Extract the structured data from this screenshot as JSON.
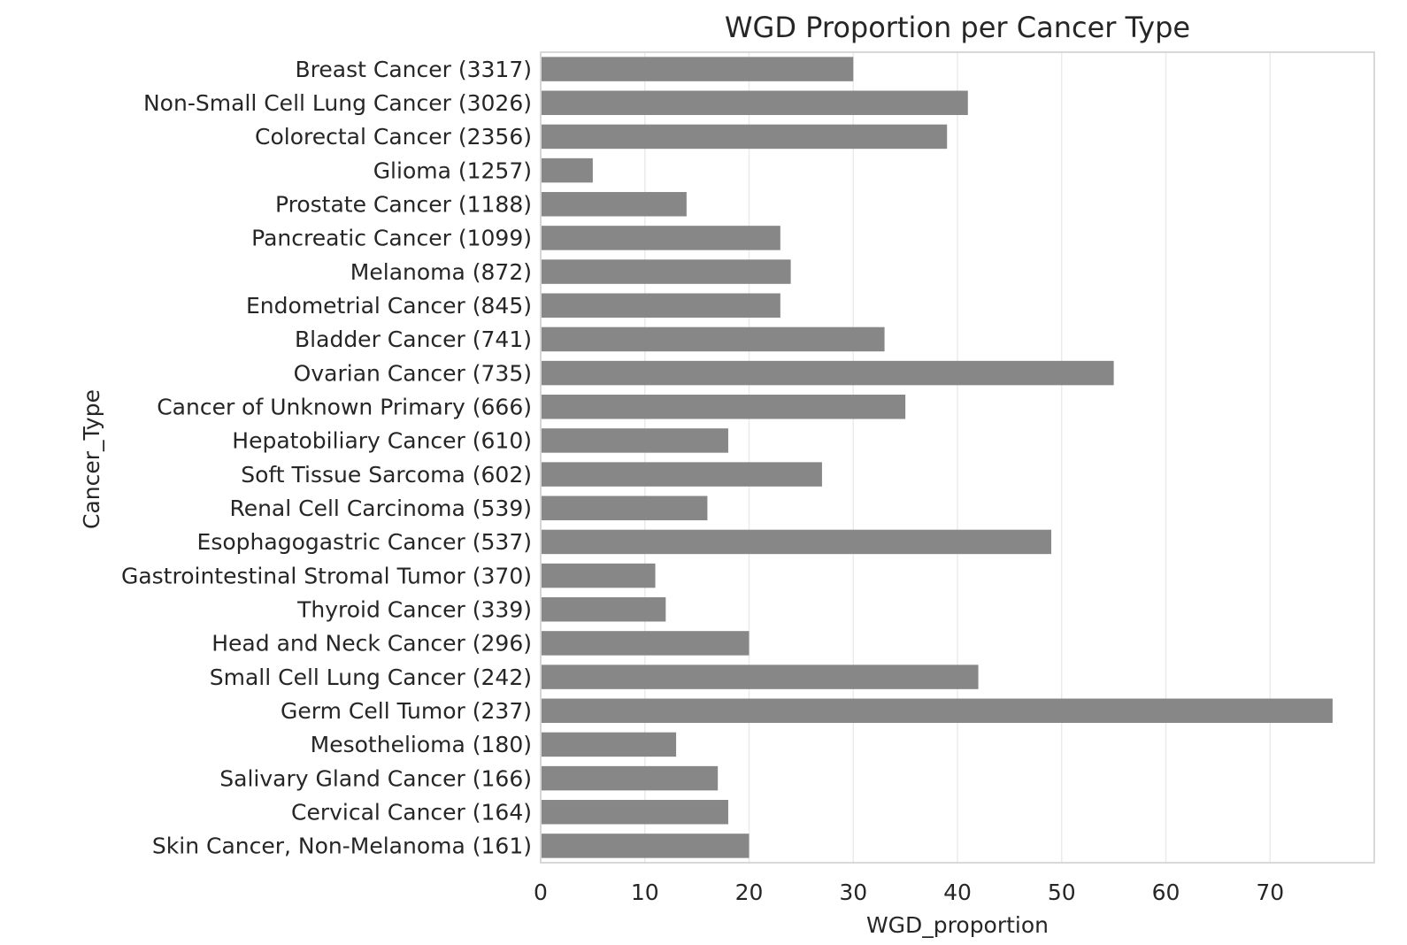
{
  "chart_data": {
    "type": "bar",
    "orientation": "horizontal",
    "title": "WGD Proportion per Cancer Type",
    "xlabel": "WGD_proportion",
    "ylabel": "Cancer_Type",
    "xlim": [
      0,
      80
    ],
    "xticks": [
      "0",
      "10",
      "20",
      "30",
      "40",
      "50",
      "60",
      "70"
    ],
    "grid": "vertical",
    "bar_color": "#878787",
    "categories": [
      "Breast Cancer (3317)",
      "Non-Small Cell Lung Cancer (3026)",
      "Colorectal Cancer (2356)",
      "Glioma (1257)",
      "Prostate Cancer (1188)",
      "Pancreatic Cancer (1099)",
      "Melanoma (872)",
      "Endometrial Cancer (845)",
      "Bladder Cancer (741)",
      "Ovarian Cancer (735)",
      "Cancer of Unknown Primary (666)",
      "Hepatobiliary Cancer (610)",
      "Soft Tissue Sarcoma (602)",
      "Renal Cell Carcinoma (539)",
      "Esophagogastric Cancer (537)",
      "Gastrointestinal Stromal Tumor (370)",
      "Thyroid Cancer (339)",
      "Head and Neck Cancer (296)",
      "Small Cell Lung Cancer (242)",
      "Germ Cell Tumor (237)",
      "Mesothelioma (180)",
      "Salivary Gland Cancer (166)",
      "Cervical Cancer (164)",
      "Skin Cancer, Non-Melanoma (161)"
    ],
    "values": [
      30,
      41,
      39,
      5,
      14,
      23,
      24,
      23,
      33,
      55,
      35,
      18,
      27,
      16,
      49,
      11,
      12,
      20,
      42,
      76,
      13,
      17,
      18,
      20
    ]
  }
}
